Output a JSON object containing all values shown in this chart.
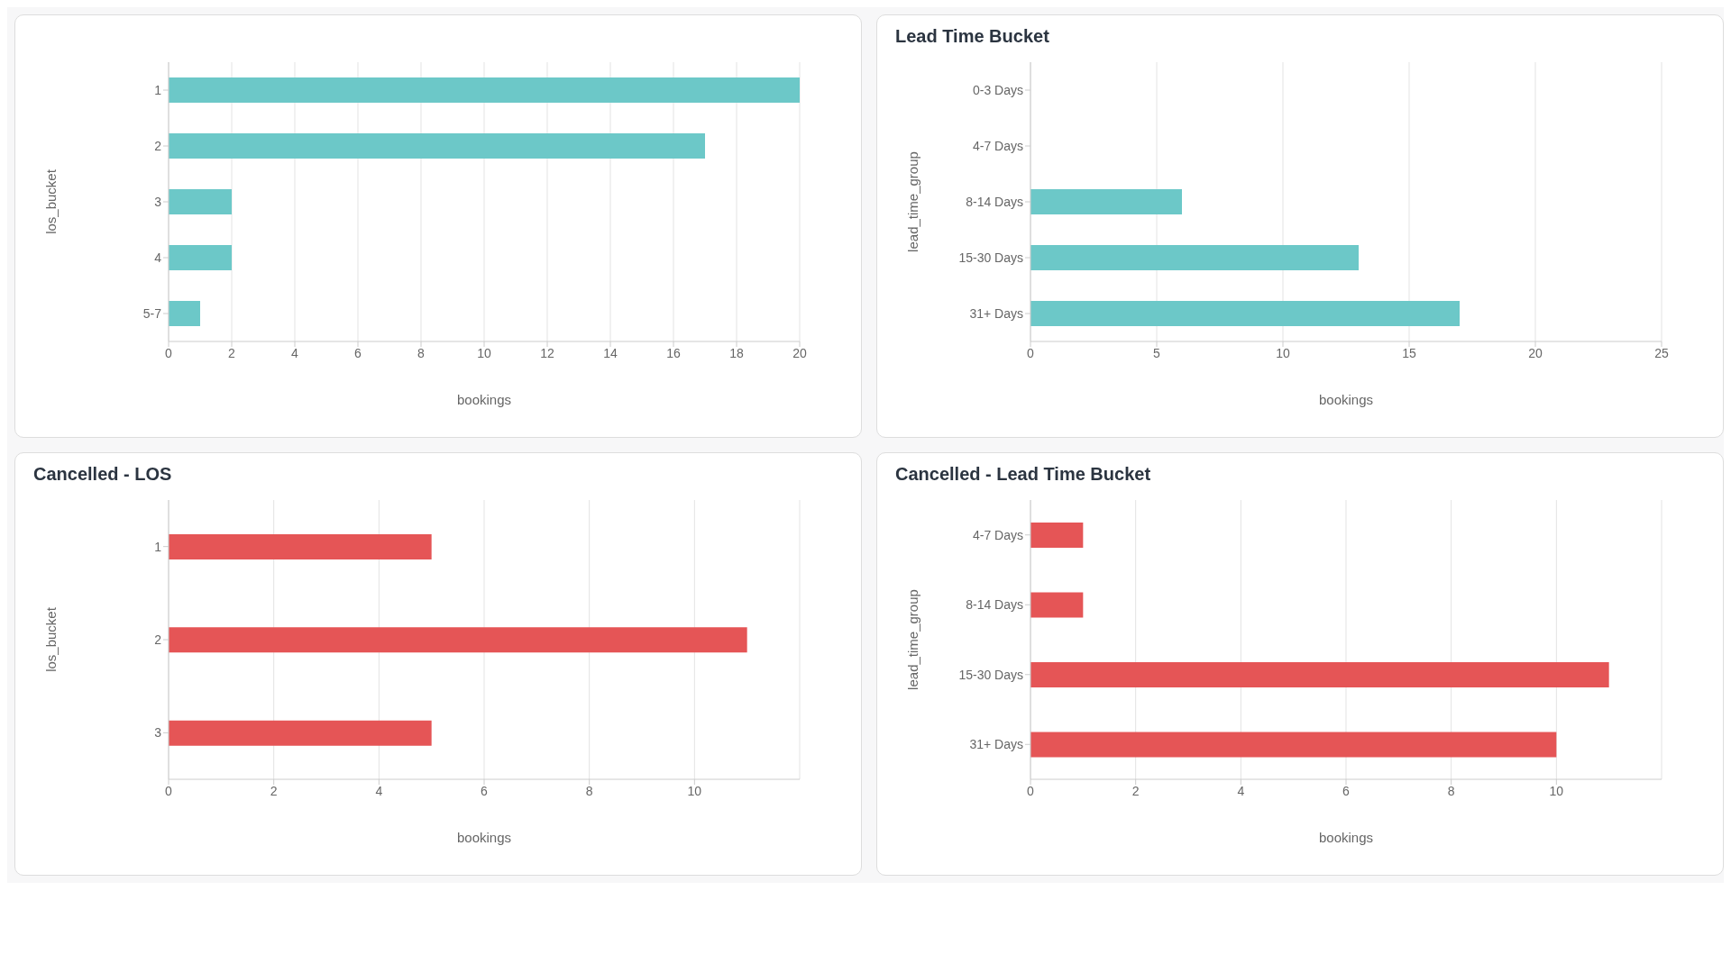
{
  "chart_data": [
    {
      "type": "bar",
      "orientation": "horizontal",
      "categories": [
        "1",
        "2",
        "3",
        "4",
        "5-7"
      ],
      "values": [
        20,
        17,
        2,
        2,
        1
      ],
      "color": "#6cc8c8",
      "xlabel": "bookings",
      "ylabel": "los_bucket",
      "xlim": [
        0,
        20
      ],
      "xticks": [
        0,
        2,
        4,
        6,
        8,
        10,
        12,
        14,
        16,
        18,
        20
      ],
      "grid": "x"
    },
    {
      "type": "bar",
      "orientation": "horizontal",
      "title": "Lead Time Bucket",
      "categories": [
        "0-3 Days",
        "4-7 Days",
        "8-14 Days",
        "15-30 Days",
        "31+ Days"
      ],
      "values": [
        null,
        null,
        6,
        13,
        17
      ],
      "color": "#6cc8c8",
      "xlabel": "bookings",
      "ylabel": "lead_time_group",
      "xlim": [
        0,
        25
      ],
      "xticks": [
        0,
        5,
        10,
        15,
        20,
        25
      ],
      "grid": "x"
    },
    {
      "type": "bar",
      "orientation": "horizontal",
      "title": "Cancelled - LOS",
      "categories": [
        "1",
        "2",
        "3"
      ],
      "values": [
        5,
        11,
        5
      ],
      "color": "#e55556",
      "xlabel": "bookings",
      "ylabel": "los_bucket",
      "xlim": [
        0,
        12
      ],
      "xticks": [
        0,
        2,
        4,
        6,
        8,
        10
      ],
      "grid": "x"
    },
    {
      "type": "bar",
      "orientation": "horizontal",
      "title": "Cancelled - Lead Time Bucket",
      "categories": [
        "4-7 Days",
        "8-14 Days",
        "15-30 Days",
        "31+ Days"
      ],
      "values": [
        1,
        1,
        11,
        10
      ],
      "color": "#e55556",
      "xlabel": "bookings",
      "ylabel": "lead_time_group",
      "xlim": [
        0,
        12
      ],
      "xticks": [
        0,
        2,
        4,
        6,
        8,
        10
      ],
      "grid": "x"
    }
  ]
}
